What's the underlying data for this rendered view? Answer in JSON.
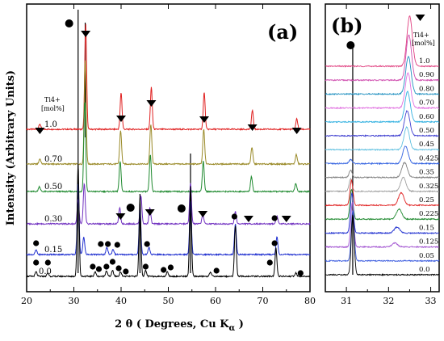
{
  "figure": {
    "y_axis_title": "Intensity (Arbitrary Units)",
    "x_axis_title_main": "2 θ ( Degrees, Cu K",
    "x_axis_title_sub": "α",
    "x_axis_title_end": " )"
  },
  "chart_data": [
    {
      "panel": "(a)",
      "type": "line",
      "xlim": [
        20,
        80
      ],
      "x_ticks": [
        "20",
        "30",
        "40",
        "50",
        "60",
        "70",
        "80"
      ],
      "legend_header": [
        "Ti4+",
        "[mol%]"
      ],
      "series": [
        {
          "name": "1.0",
          "color": "#e02020",
          "peaks": [
            [
              22.8,
              0.05
            ],
            [
              32.5,
              1.0
            ],
            [
              40.0,
              0.35
            ],
            [
              46.4,
              0.4
            ],
            [
              57.6,
              0.35
            ],
            [
              67.8,
              0.18
            ],
            [
              77.2,
              0.1
            ]
          ]
        },
        {
          "name": "0.70",
          "color": "#9a8a28",
          "peaks": [
            [
              22.8,
              0.05
            ],
            [
              32.4,
              1.0
            ],
            [
              39.9,
              0.32
            ],
            [
              46.3,
              0.38
            ],
            [
              57.5,
              0.33
            ],
            [
              67.7,
              0.16
            ],
            [
              77.1,
              0.09
            ]
          ]
        },
        {
          "name": "0.50",
          "color": "#208a30",
          "peaks": [
            [
              22.7,
              0.05
            ],
            [
              32.3,
              0.9
            ],
            [
              39.8,
              0.3
            ],
            [
              46.2,
              0.36
            ],
            [
              57.4,
              0.3
            ],
            [
              67.6,
              0.15
            ],
            [
              77.0,
              0.08
            ]
          ]
        },
        {
          "name": "0.30",
          "color": "#7030c0",
          "peaks": [
            [
              30.9,
              0.3
            ],
            [
              32.2,
              0.5
            ],
            [
              39.7,
              0.2
            ],
            [
              44.2,
              0.35
            ],
            [
              46.1,
              0.2
            ],
            [
              54.7,
              0.5
            ],
            [
              57.3,
              0.12
            ],
            [
              64.2,
              0.15
            ],
            [
              73.0,
              0.1
            ]
          ]
        },
        {
          "name": "0.15",
          "color": "#2030d0",
          "peaks": [
            [
              22.0,
              0.05
            ],
            [
              30.9,
              0.8
            ],
            [
              32.1,
              0.2
            ],
            [
              37.0,
              0.08
            ],
            [
              38.3,
              0.06
            ],
            [
              44.0,
              0.5
            ],
            [
              45.9,
              0.08
            ],
            [
              54.7,
              0.6
            ],
            [
              64.2,
              0.35
            ],
            [
              73.0,
              0.2
            ]
          ]
        },
        {
          "name": "0.0",
          "color": "#000000",
          "peaks": [
            [
              22.0,
              0.04
            ],
            [
              24.5,
              0.03
            ],
            [
              30.9,
              1.0
            ],
            [
              34.5,
              0.04
            ],
            [
              36.9,
              0.05
            ],
            [
              38.2,
              0.05
            ],
            [
              39.9,
              0.04
            ],
            [
              44.0,
              0.7
            ],
            [
              45.2,
              0.05
            ],
            [
              49.8,
              0.04
            ],
            [
              54.7,
              0.8
            ],
            [
              58.9,
              0.04
            ],
            [
              64.2,
              0.45
            ],
            [
              72.8,
              0.25
            ],
            [
              77.0,
              0.03
            ]
          ]
        }
      ]
    },
    {
      "panel": "(b)",
      "type": "line",
      "xlim": [
        30.5,
        33.2
      ],
      "x_ticks": [
        "31",
        "32",
        "33"
      ],
      "legend_header": [
        "Ti4+",
        "[mol%]"
      ],
      "series": [
        {
          "name": "1.0",
          "color": "#e04080",
          "peak_positions": [
            32.5
          ],
          "peak_heights": [
            1.0
          ]
        },
        {
          "name": "0.90",
          "color": "#d050b0",
          "peak_positions": [
            32.48
          ],
          "peak_heights": [
            0.9
          ]
        },
        {
          "name": "0.80",
          "color": "#2090c0",
          "peak_positions": [
            32.47
          ],
          "peak_heights": [
            0.75
          ]
        },
        {
          "name": "0.70",
          "color": "#e070e0",
          "peak_positions": [
            32.46
          ],
          "peak_heights": [
            0.7
          ]
        },
        {
          "name": "0.60",
          "color": "#30b0e0",
          "peak_positions": [
            32.45
          ],
          "peak_heights": [
            0.6
          ]
        },
        {
          "name": "0.50",
          "color": "#4040d0",
          "peak_positions": [
            32.44
          ],
          "peak_heights": [
            0.5
          ]
        },
        {
          "name": "0.45",
          "color": "#60c0e0",
          "peak_positions": [
            32.43
          ],
          "peak_heights": [
            0.45
          ]
        },
        {
          "name": "0.425",
          "color": "#3060e0",
          "peak_positions": [
            31.1,
            32.4
          ],
          "peak_heights": [
            0.08,
            0.35
          ]
        },
        {
          "name": "0.35",
          "color": "#808080",
          "peak_positions": [
            31.1,
            32.38
          ],
          "peak_heights": [
            0.15,
            0.3
          ]
        },
        {
          "name": "0.325",
          "color": "#a0a0a0",
          "peak_positions": [
            31.1,
            32.35
          ],
          "peak_heights": [
            0.25,
            0.28
          ]
        },
        {
          "name": "0.25",
          "color": "#e02020",
          "peak_positions": [
            31.12,
            32.3
          ],
          "peak_heights": [
            0.5,
            0.25
          ]
        },
        {
          "name": "0.225",
          "color": "#208a30",
          "peak_positions": [
            31.12,
            32.25
          ],
          "peak_heights": [
            0.6,
            0.2
          ]
        },
        {
          "name": "0.15",
          "color": "#2030d0",
          "peak_positions": [
            31.13,
            32.2
          ],
          "peak_heights": [
            0.8,
            0.12
          ]
        },
        {
          "name": "0.125",
          "color": "#a050d0",
          "peak_positions": [
            31.14,
            32.15
          ],
          "peak_heights": [
            0.9,
            0.08
          ]
        },
        {
          "name": "0.05",
          "color": "#4060e0",
          "peak_positions": [
            31.15
          ],
          "peak_heights": [
            1.0
          ]
        },
        {
          "name": "0.0",
          "color": "#000000",
          "peak_positions": [
            31.15
          ],
          "peak_heights": [
            1.2
          ]
        }
      ]
    }
  ]
}
